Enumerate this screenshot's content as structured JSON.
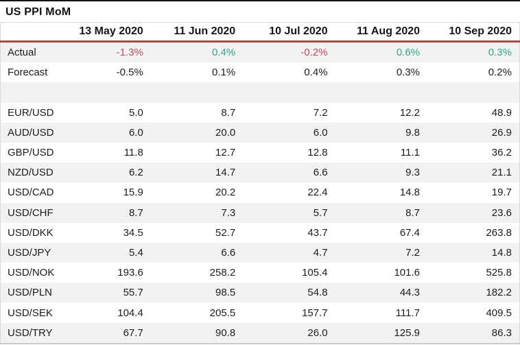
{
  "title": "US PPI MoM",
  "colors": {
    "positive": "#2fa98b",
    "negative": "#c9485a",
    "separator": "#a84a4c",
    "row_alt": "#f2f2f2",
    "border": "#d9d9d9",
    "border_bottom": "#c9c9c9"
  },
  "chart_data": {
    "type": "table",
    "title": "US PPI MoM",
    "columns": [
      "13 May 2020",
      "11 Jun 2020",
      "10 Jul 2020",
      "11 Aug 2020",
      "10 Sep 2020"
    ],
    "rows": [
      {
        "label": "Actual",
        "values": [
          "-1.3%",
          "0.4%",
          "-0.2%",
          "0.6%",
          "0.3%"
        ],
        "signs": [
          "negative",
          "positive",
          "negative",
          "positive",
          "positive"
        ]
      },
      {
        "label": "Forecast",
        "values": [
          "-0.5%",
          "0.1%",
          "0.4%",
          "0.3%",
          "0.2%"
        ]
      },
      {
        "label": "EUR/USD",
        "values": [
          "5.0",
          "8.7",
          "7.2",
          "12.2",
          "48.9"
        ]
      },
      {
        "label": "AUD/USD",
        "values": [
          "6.0",
          "20.0",
          "6.0",
          "9.8",
          "26.9"
        ]
      },
      {
        "label": "GBP/USD",
        "values": [
          "11.8",
          "12.7",
          "12.8",
          "11.1",
          "36.2"
        ]
      },
      {
        "label": "NZD/USD",
        "values": [
          "6.2",
          "14.7",
          "6.6",
          "9.3",
          "21.1"
        ]
      },
      {
        "label": "USD/CAD",
        "values": [
          "15.9",
          "20.2",
          "22.4",
          "14.8",
          "19.7"
        ]
      },
      {
        "label": "USD/CHF",
        "values": [
          "8.7",
          "7.3",
          "5.7",
          "8.7",
          "23.6"
        ]
      },
      {
        "label": "USD/DKK",
        "values": [
          "34.5",
          "52.7",
          "43.7",
          "67.4",
          "263.8"
        ]
      },
      {
        "label": "USD/JPY",
        "values": [
          "5.4",
          "6.6",
          "4.7",
          "7.2",
          "14.8"
        ]
      },
      {
        "label": "USD/NOK",
        "values": [
          "193.6",
          "258.2",
          "105.4",
          "101.6",
          "525.8"
        ]
      },
      {
        "label": "USD/PLN",
        "values": [
          "55.7",
          "98.5",
          "54.8",
          "44.3",
          "182.2"
        ]
      },
      {
        "label": "USD/SEK",
        "values": [
          "104.4",
          "205.5",
          "157.7",
          "111.7",
          "409.5"
        ]
      },
      {
        "label": "USD/TRY",
        "values": [
          "67.7",
          "90.8",
          "26.0",
          "125.9",
          "86.3"
        ]
      }
    ]
  }
}
